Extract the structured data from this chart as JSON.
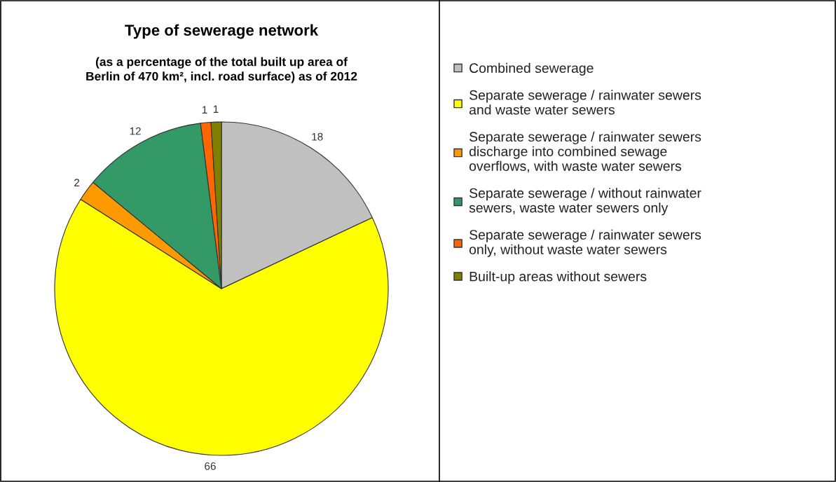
{
  "chart_data": {
    "type": "pie",
    "title": "Type of sewerage network",
    "subtitle": "(as a percentage of the total built up area of\nBerlin of 470 km², incl. road surface) as of 2012",
    "categories": [
      "Combined sewerage",
      "Separate sewerage / rainwater sewers\nand waste water sewers",
      "Separate sewerage / rainwater sewers\ndischarge into combined sewage\noverflows, with waste water sewers",
      "Separate sewerage / without rainwater\nsewers, waste water sewers only",
      "Separate sewerage / rainwater sewers\nonly, without waste water sewers",
      "Built-up areas without sewers"
    ],
    "values": [
      18,
      66,
      2,
      12,
      1,
      1
    ],
    "colors": [
      "#c0c0c0",
      "#ffff00",
      "#ff9900",
      "#339966",
      "#ff6600",
      "#808000"
    ],
    "data_labels": true,
    "legend": "right"
  }
}
